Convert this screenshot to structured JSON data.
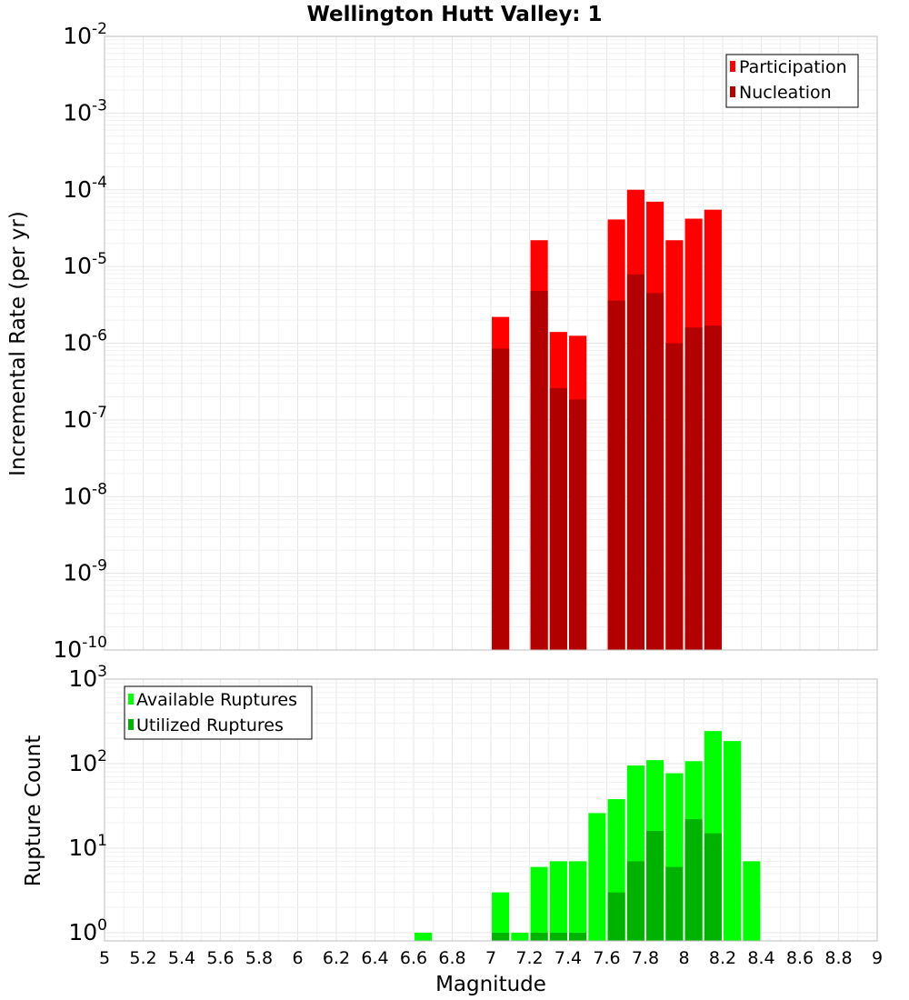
{
  "chart_data": [
    {
      "type": "bar",
      "title": "Wellington Hutt Valley: 1",
      "xlabel": "",
      "ylabel": "Incremental Rate (per yr)",
      "yscale": "log",
      "xlim": [
        5,
        9
      ],
      "ylim": [
        1e-10,
        0.01
      ],
      "grid": true,
      "legend": {
        "placement": "top-right",
        "entries": [
          "Participation",
          "Nucleation"
        ]
      },
      "colors": {
        "participation": "#ff0000",
        "nucleation": "#b20000"
      },
      "x": [
        7.05,
        7.25,
        7.35,
        7.45,
        7.65,
        7.75,
        7.85,
        7.95,
        8.05,
        8.15
      ],
      "series": [
        {
          "name": "Participation",
          "values": [
            2.2e-06,
            2.2e-05,
            1.4e-06,
            1.25e-06,
            4.1e-05,
            0.0001,
            7e-05,
            2.2e-05,
            4.2e-05,
            5.5e-05
          ]
        },
        {
          "name": "Nucleation",
          "values": [
            8.5e-07,
            4.8e-06,
            2.6e-07,
            1.85e-07,
            3.6e-06,
            7.9e-06,
            4.5e-06,
            1e-06,
            1.6e-06,
            1.7e-06
          ]
        }
      ]
    },
    {
      "type": "bar",
      "title": "",
      "xlabel": "Magnitude",
      "ylabel": "Rupture Count",
      "yscale": "log",
      "xlim": [
        5,
        9
      ],
      "ylim": [
        0.8,
        1000
      ],
      "grid": true,
      "legend": {
        "placement": "top-left",
        "entries": [
          "Available Ruptures",
          "Utilized Ruptures"
        ]
      },
      "colors": {
        "available": "#00ff00",
        "utilized": "#00b200"
      },
      "xticks": [
        "5",
        "5.2",
        "5.4",
        "5.6",
        "5.8",
        "6",
        "6.2",
        "6.4",
        "6.6",
        "6.8",
        "7",
        "7.2",
        "7.4",
        "7.6",
        "7.8",
        "8",
        "8.2",
        "8.4",
        "8.6",
        "8.8",
        "9"
      ],
      "x": [
        6.65,
        7.05,
        7.15,
        7.25,
        7.35,
        7.45,
        7.55,
        7.65,
        7.75,
        7.85,
        7.95,
        8.05,
        8.15,
        8.25,
        8.35
      ],
      "series": [
        {
          "name": "Available Ruptures",
          "values": [
            1,
            3,
            1,
            6,
            7,
            7,
            26,
            38,
            95,
            110,
            77,
            107,
            243,
            185,
            7
          ]
        },
        {
          "name": "Utilized Ruptures",
          "values": [
            null,
            1,
            null,
            1,
            1,
            1,
            null,
            3,
            7,
            16,
            6,
            22,
            15,
            null,
            null
          ]
        }
      ]
    }
  ]
}
